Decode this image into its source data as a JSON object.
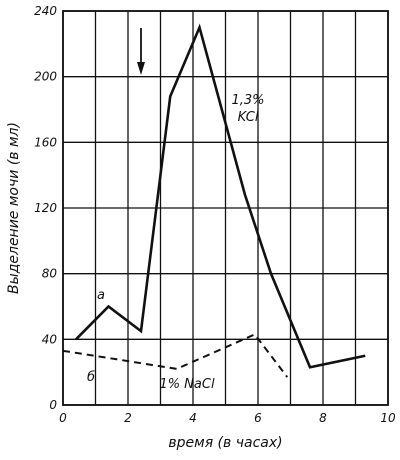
{
  "chart_data": {
    "type": "line",
    "xlabel": "время (в часах)",
    "ylabel": "Выделение мочи (в мл)",
    "xlim": [
      0,
      10
    ],
    "ylim": [
      0,
      240
    ],
    "x_ticks": [
      "0",
      "2",
      "4",
      "6",
      "8",
      "10"
    ],
    "y_ticks": [
      "0",
      "40",
      "80",
      "120",
      "160",
      "200",
      "240"
    ],
    "grid": true,
    "series": [
      {
        "name": "а",
        "label": "1,3% KCl",
        "style": "solid",
        "x": [
          0.4,
          1.4,
          2.4,
          3.3,
          4.2,
          5.6,
          6.4,
          7.6,
          9.3
        ],
        "y": [
          40,
          60,
          45,
          188,
          230,
          128,
          80,
          23,
          30
        ]
      },
      {
        "name": "б",
        "label": "1% NaCl",
        "style": "dashed",
        "x": [
          0,
          1.6,
          3.5,
          5.9,
          6.9
        ],
        "y": [
          33,
          28,
          22,
          43,
          17
        ]
      }
    ],
    "annotations": [
      {
        "type": "arrow",
        "direction": "down",
        "x": 2.4
      }
    ]
  }
}
